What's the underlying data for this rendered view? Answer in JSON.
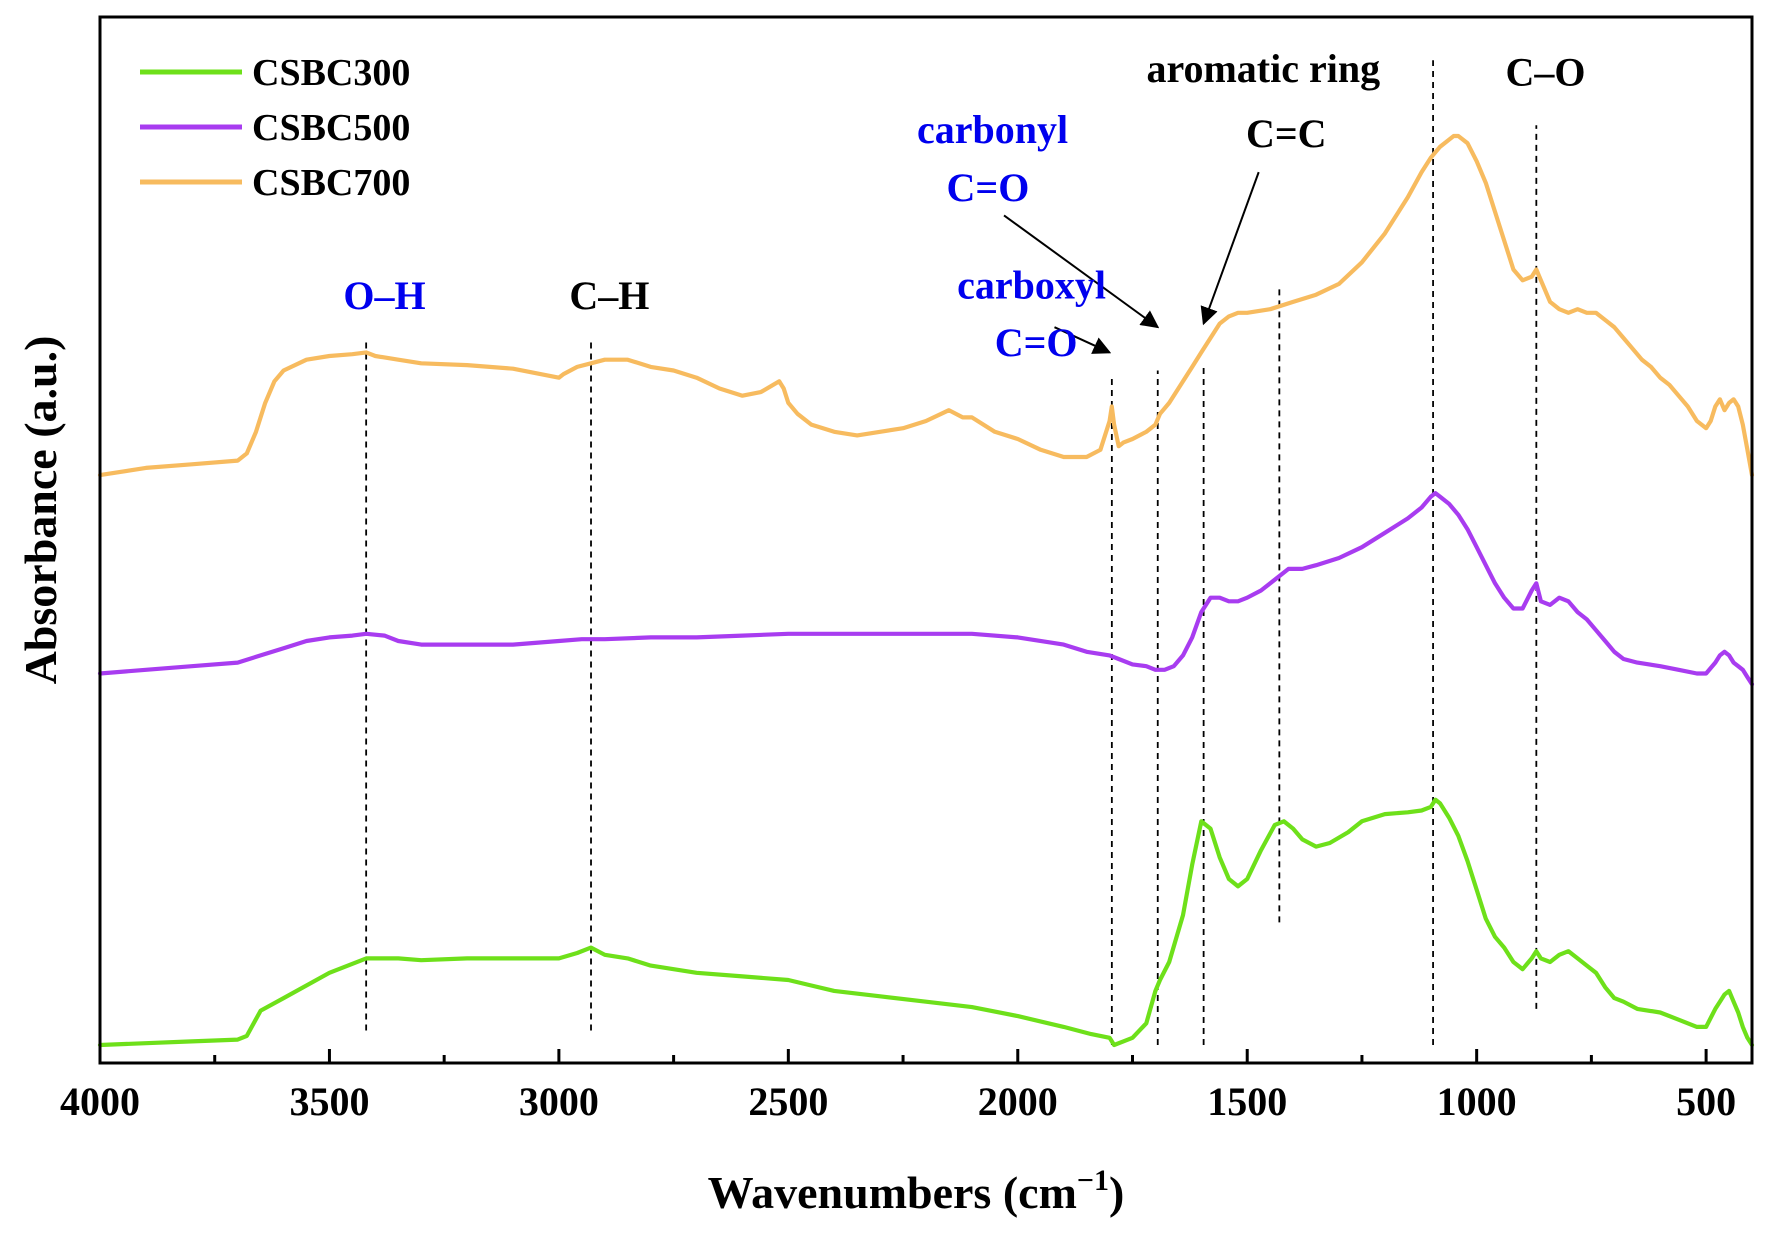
{
  "chart_data": {
    "type": "line",
    "xlabel": "Wavenumbers (cm",
    "xlabel_sup": "−1",
    "xlabel_end": ")",
    "ylabel": "Absorbance (a.u.)",
    "xlim": [
      4000,
      400
    ],
    "ylim": [
      -0.05,
      2.85
    ],
    "xticks": [
      4000,
      3500,
      3000,
      2500,
      2000,
      1500,
      1000,
      500
    ],
    "xtick_labels": [
      "4000",
      "3500",
      "3000",
      "2500",
      "2000",
      "1500",
      "1000",
      "500"
    ],
    "legend": {
      "placement": "top-left",
      "entries": [
        "CSBC300",
        "CSBC500",
        "CSBC700"
      ]
    },
    "series": [
      {
        "name": "CSBC300",
        "color": "#6ee01a",
        "x": [
          4000,
          3900,
          3800,
          3700,
          3680,
          3650,
          3600,
          3500,
          3420,
          3350,
          3300,
          3200,
          3100,
          3000,
          2960,
          2930,
          2900,
          2850,
          2800,
          2700,
          2600,
          2500,
          2450,
          2400,
          2300,
          2200,
          2100,
          2000,
          1900,
          1840,
          1800,
          1790,
          1770,
          1750,
          1720,
          1700,
          1690,
          1670,
          1640,
          1620,
          1600,
          1580,
          1560,
          1540,
          1520,
          1500,
          1470,
          1440,
          1420,
          1400,
          1380,
          1350,
          1320,
          1280,
          1250,
          1200,
          1150,
          1120,
          1100,
          1090,
          1080,
          1060,
          1040,
          1020,
          1000,
          980,
          960,
          940,
          920,
          900,
          880,
          870,
          860,
          840,
          820,
          800,
          780,
          760,
          740,
          720,
          700,
          680,
          650,
          600,
          560,
          520,
          500,
          480,
          470,
          460,
          450,
          440,
          430,
          420,
          410,
          400
        ],
        "y": [
          0.0,
          0.005,
          0.01,
          0.015,
          0.025,
          0.095,
          0.13,
          0.2,
          0.24,
          0.24,
          0.235,
          0.24,
          0.24,
          0.24,
          0.255,
          0.27,
          0.25,
          0.24,
          0.22,
          0.2,
          0.19,
          0.18,
          0.165,
          0.15,
          0.135,
          0.12,
          0.105,
          0.08,
          0.05,
          0.03,
          0.02,
          0.0,
          0.01,
          0.02,
          0.06,
          0.15,
          0.18,
          0.23,
          0.36,
          0.5,
          0.62,
          0.6,
          0.52,
          0.46,
          0.44,
          0.46,
          0.54,
          0.61,
          0.62,
          0.6,
          0.57,
          0.55,
          0.56,
          0.59,
          0.62,
          0.64,
          0.645,
          0.65,
          0.66,
          0.68,
          0.67,
          0.63,
          0.58,
          0.51,
          0.43,
          0.35,
          0.3,
          0.27,
          0.23,
          0.21,
          0.24,
          0.26,
          0.24,
          0.23,
          0.25,
          0.26,
          0.24,
          0.22,
          0.2,
          0.16,
          0.13,
          0.12,
          0.1,
          0.09,
          0.07,
          0.05,
          0.05,
          0.1,
          0.12,
          0.14,
          0.15,
          0.12,
          0.09,
          0.05,
          0.02,
          0.0
        ]
      },
      {
        "name": "CSBC500",
        "color": "#a83cf0",
        "x": [
          4000,
          3900,
          3800,
          3700,
          3650,
          3600,
          3550,
          3500,
          3450,
          3420,
          3380,
          3350,
          3300,
          3200,
          3100,
          3000,
          2950,
          2900,
          2800,
          2700,
          2600,
          2500,
          2400,
          2300,
          2200,
          2100,
          2000,
          1900,
          1850,
          1800,
          1780,
          1750,
          1720,
          1700,
          1680,
          1660,
          1640,
          1620,
          1600,
          1580,
          1560,
          1540,
          1520,
          1500,
          1470,
          1440,
          1410,
          1380,
          1350,
          1300,
          1250,
          1200,
          1150,
          1120,
          1100,
          1090,
          1080,
          1060,
          1040,
          1020,
          1000,
          980,
          960,
          940,
          920,
          900,
          880,
          870,
          860,
          840,
          820,
          800,
          780,
          760,
          740,
          720,
          700,
          680,
          650,
          600,
          560,
          520,
          500,
          480,
          470,
          460,
          450,
          440,
          430,
          420,
          410,
          400
        ],
        "y": [
          1.03,
          1.04,
          1.05,
          1.06,
          1.08,
          1.1,
          1.12,
          1.13,
          1.135,
          1.14,
          1.135,
          1.12,
          1.11,
          1.11,
          1.11,
          1.12,
          1.125,
          1.125,
          1.13,
          1.13,
          1.135,
          1.14,
          1.14,
          1.14,
          1.14,
          1.14,
          1.13,
          1.11,
          1.09,
          1.08,
          1.07,
          1.055,
          1.05,
          1.04,
          1.04,
          1.05,
          1.08,
          1.13,
          1.2,
          1.24,
          1.24,
          1.23,
          1.23,
          1.24,
          1.26,
          1.29,
          1.32,
          1.32,
          1.33,
          1.35,
          1.38,
          1.42,
          1.46,
          1.49,
          1.52,
          1.53,
          1.52,
          1.5,
          1.47,
          1.43,
          1.38,
          1.33,
          1.28,
          1.24,
          1.21,
          1.21,
          1.26,
          1.28,
          1.23,
          1.22,
          1.24,
          1.23,
          1.2,
          1.18,
          1.15,
          1.12,
          1.09,
          1.07,
          1.06,
          1.05,
          1.04,
          1.03,
          1.03,
          1.06,
          1.08,
          1.09,
          1.08,
          1.06,
          1.05,
          1.04,
          1.02,
          1.0
        ]
      },
      {
        "name": "CSBC700",
        "color": "#f7bb5f",
        "x": [
          4000,
          3900,
          3800,
          3700,
          3680,
          3660,
          3640,
          3620,
          3600,
          3550,
          3500,
          3450,
          3420,
          3400,
          3350,
          3300,
          3200,
          3100,
          3000,
          2990,
          2960,
          2930,
          2900,
          2850,
          2800,
          2750,
          2700,
          2650,
          2600,
          2560,
          2520,
          2510,
          2500,
          2480,
          2450,
          2400,
          2350,
          2300,
          2250,
          2200,
          2150,
          2120,
          2100,
          2050,
          2000,
          1950,
          1900,
          1850,
          1820,
          1800,
          1795,
          1790,
          1780,
          1770,
          1750,
          1720,
          1700,
          1690,
          1670,
          1640,
          1620,
          1600,
          1580,
          1560,
          1540,
          1520,
          1500,
          1450,
          1400,
          1350,
          1300,
          1250,
          1200,
          1150,
          1120,
          1100,
          1080,
          1060,
          1050,
          1040,
          1020,
          1000,
          980,
          960,
          940,
          920,
          900,
          880,
          870,
          860,
          840,
          820,
          800,
          780,
          760,
          740,
          720,
          700,
          680,
          660,
          640,
          620,
          600,
          580,
          560,
          540,
          520,
          500,
          490,
          480,
          470,
          460,
          450,
          440,
          430,
          420,
          410,
          400
        ],
        "y": [
          1.58,
          1.6,
          1.61,
          1.62,
          1.64,
          1.7,
          1.78,
          1.84,
          1.87,
          1.9,
          1.91,
          1.915,
          1.92,
          1.91,
          1.9,
          1.89,
          1.885,
          1.875,
          1.85,
          1.86,
          1.88,
          1.89,
          1.9,
          1.9,
          1.88,
          1.87,
          1.85,
          1.82,
          1.8,
          1.81,
          1.84,
          1.82,
          1.78,
          1.75,
          1.72,
          1.7,
          1.69,
          1.7,
          1.71,
          1.73,
          1.76,
          1.74,
          1.74,
          1.7,
          1.68,
          1.65,
          1.63,
          1.63,
          1.65,
          1.73,
          1.77,
          1.72,
          1.66,
          1.67,
          1.68,
          1.7,
          1.72,
          1.75,
          1.78,
          1.84,
          1.88,
          1.92,
          1.96,
          2.0,
          2.02,
          2.03,
          2.03,
          2.04,
          2.06,
          2.08,
          2.11,
          2.17,
          2.25,
          2.35,
          2.42,
          2.46,
          2.49,
          2.51,
          2.52,
          2.52,
          2.5,
          2.45,
          2.39,
          2.31,
          2.23,
          2.15,
          2.12,
          2.13,
          2.15,
          2.12,
          2.06,
          2.04,
          2.03,
          2.04,
          2.03,
          2.03,
          2.01,
          1.99,
          1.96,
          1.93,
          1.9,
          1.88,
          1.85,
          1.83,
          1.8,
          1.77,
          1.73,
          1.71,
          1.73,
          1.77,
          1.79,
          1.76,
          1.78,
          1.79,
          1.77,
          1.72,
          1.65,
          1.58
        ]
      }
    ],
    "guides": [
      {
        "x": 3420,
        "y0": 0.04,
        "y1": 1.96
      },
      {
        "x": 2930,
        "y0": 0.04,
        "y1": 1.96
      },
      {
        "x": 1795,
        "y0": 0.0,
        "y1": 1.85
      },
      {
        "x": 1695,
        "y0": 0.0,
        "y1": 1.87
      },
      {
        "x": 1595,
        "y0": 0.0,
        "y1": 1.88
      },
      {
        "x": 1430,
        "y0": 0.34,
        "y1": 2.1
      },
      {
        "x": 1095,
        "y0": 0.0,
        "y1": 2.73
      },
      {
        "x": 870,
        "y0": 0.1,
        "y1": 2.55
      }
    ],
    "annotations": [
      {
        "text": "O–H",
        "color": "#0000ee",
        "x": 3380,
        "y": 2.04
      },
      {
        "text": "C–H",
        "color": "#000000",
        "x": 2890,
        "y": 2.04
      },
      {
        "text": "carboxyl",
        "color": "#0000ee",
        "x": 1970,
        "y": 2.07
      },
      {
        "text": "C=O",
        "color": "#0000ee",
        "x": 1960,
        "y": 1.91
      },
      {
        "text": "carbonyl",
        "color": "#0000ee",
        "x": 2055,
        "y": 2.5
      },
      {
        "text": "C=O",
        "color": "#0000ee",
        "x": 2065,
        "y": 2.34
      },
      {
        "text": "aromatic ring",
        "color": "#000000",
        "x": 1465,
        "y": 2.67
      },
      {
        "text": "C=C",
        "color": "#000000",
        "x": 1415,
        "y": 2.49
      },
      {
        "text": "C–O",
        "color": "#000000",
        "x": 850,
        "y": 2.66
      }
    ],
    "arrows": [
      {
        "from": [
          1920,
          1.99
        ],
        "to": [
          1800,
          1.92
        ]
      },
      {
        "from": [
          2030,
          2.3
        ],
        "to": [
          1695,
          1.99
        ]
      },
      {
        "from": [
          1475,
          2.42
        ],
        "to": [
          1595,
          2.0
        ]
      }
    ]
  }
}
